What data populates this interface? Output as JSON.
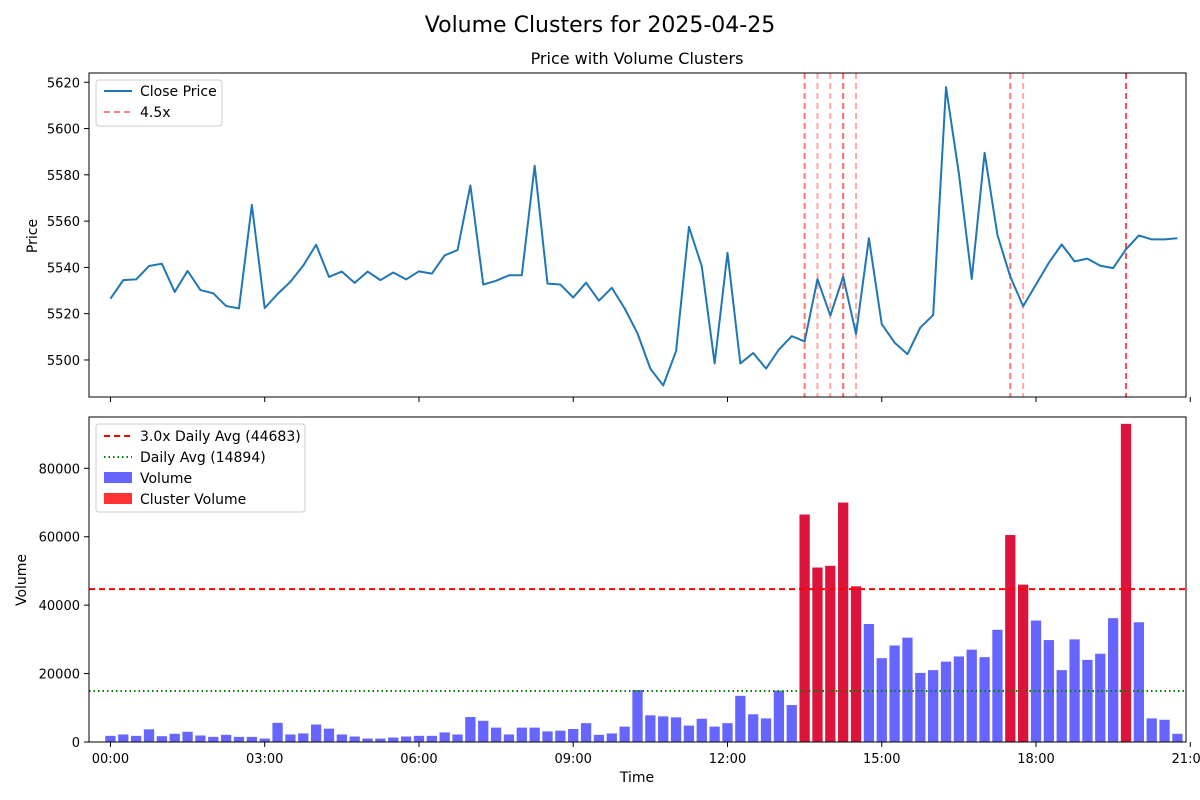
{
  "figure": {
    "suptitle": "Volume Clusters for 2025-04-25"
  },
  "chart_data": [
    {
      "type": "line",
      "title": "Price with Volume Clusters",
      "xlabel": "",
      "ylabel": "Price",
      "xlim": [
        -0.417,
        20.917
      ],
      "ylim": [
        5484,
        5624
      ],
      "yticks": [
        5500,
        5520,
        5540,
        5560,
        5580,
        5600,
        5620
      ],
      "xticks": [
        0,
        3,
        6,
        9,
        12,
        15,
        18,
        21
      ],
      "xticklabels": [
        "00:00",
        "03:00",
        "06:00",
        "09:00",
        "12:00",
        "15:00",
        "18:00",
        "21:00"
      ],
      "grid": false,
      "legend_position": "upper-left",
      "colors": {
        "price": "#1f77b4",
        "cluster_line": "#ff0000"
      },
      "series": [
        {
          "name": "Close Price",
          "x_start_hour": 0,
          "x_step_hours": 0.25,
          "values": [
            5526.5,
            5534.5,
            5534.8,
            5540.6,
            5541.6,
            5529.4,
            5538.5,
            5530.2,
            5528.8,
            5523.3,
            5522.3,
            5567.0,
            5522.4,
            5528.5,
            5533.8,
            5540.8,
            5549.8,
            5535.9,
            5538.2,
            5533.3,
            5538.2,
            5534.5,
            5537.8,
            5534.8,
            5538.3,
            5537.3,
            5545.2,
            5547.5,
            5575.4,
            5532.6,
            5534.2,
            5536.6,
            5536.6,
            5583.9,
            5533.0,
            5532.6,
            5527.0,
            5533.4,
            5525.6,
            5531.2,
            5522.3,
            5511.5,
            5496.2,
            5489.0,
            5503.8,
            5557.5,
            5540.5,
            5498.5,
            5546.3,
            5498.5,
            5503.0,
            5496.3,
            5504.5,
            5510.3,
            5508.0,
            5534.9,
            5519.2,
            5536.0,
            5511.2,
            5552.6,
            5515.5,
            5507.5,
            5502.5,
            5514.0,
            5519.4,
            5617.9,
            5580.5,
            5535.0,
            5589.5,
            5554.0,
            5536.0,
            5523.2,
            5532.6,
            5542.0,
            5549.9,
            5542.6,
            5543.8,
            5540.7,
            5539.7,
            5547.8,
            5553.8,
            5552.1,
            5552.1,
            5552.6
          ]
        }
      ],
      "cluster_lines": [
        {
          "label": "4.5x",
          "x_hour": 13.5,
          "alpha": 0.55
        },
        {
          "x_hour": 13.75,
          "alpha": 0.35
        },
        {
          "x_hour": 14.0,
          "alpha": 0.35
        },
        {
          "x_hour": 14.25,
          "alpha": 0.6
        },
        {
          "x_hour": 14.5,
          "alpha": 0.35
        },
        {
          "x_hour": 17.5,
          "alpha": 0.55
        },
        {
          "x_hour": 17.75,
          "alpha": 0.35
        },
        {
          "x_hour": 19.75,
          "alpha": 0.7
        }
      ]
    },
    {
      "type": "bar",
      "title": "",
      "xlabel": "Time",
      "ylabel": "Volume",
      "xlim": [
        -0.417,
        20.917
      ],
      "ylim": [
        0,
        95000
      ],
      "yticks": [
        0,
        20000,
        40000,
        60000,
        80000
      ],
      "xticks": [
        0,
        3,
        6,
        9,
        12,
        15,
        18,
        21
      ],
      "xticklabels": [
        "00:00",
        "03:00",
        "06:00",
        "09:00",
        "12:00",
        "15:00",
        "18:00",
        "21:00"
      ],
      "grid": false,
      "legend_position": "upper-left",
      "bar_width_hours": 0.2,
      "x_start_hour": 0,
      "x_step_hours": 0.25,
      "values": [
        1800,
        2200,
        1800,
        3700,
        1700,
        2400,
        3000,
        1900,
        1500,
        2100,
        1500,
        1500,
        1000,
        5600,
        2200,
        2500,
        5100,
        3900,
        2200,
        1600,
        1000,
        1000,
        1300,
        1600,
        1800,
        1800,
        2800,
        2200,
        7300,
        6200,
        4200,
        2200,
        4200,
        4200,
        3100,
        3300,
        3800,
        5500,
        2100,
        2500,
        4500,
        15200,
        7800,
        7500,
        7200,
        4800,
        6800,
        4500,
        5500,
        13500,
        8100,
        6900,
        15000,
        10800,
        66500,
        51000,
        51500,
        70000,
        45500,
        34500,
        24500,
        28200,
        30500,
        20200,
        21000,
        23500,
        25000,
        27000,
        24800,
        32800,
        60500,
        46000,
        35500,
        29800,
        21000,
        30000,
        24000,
        25800,
        36200,
        93000,
        35000,
        6900,
        6500,
        2400
      ],
      "cluster_indices": [
        54,
        55,
        56,
        57,
        58,
        70,
        71,
        79
      ],
      "reference_lines": {
        "threshold": {
          "label": "3.0x Daily Avg (44683)",
          "value": 44683,
          "color": "#ff0000"
        },
        "average": {
          "label": "Daily Avg (14894)",
          "value": 14894,
          "color": "#008000"
        }
      },
      "legend": {
        "volume_label": "Volume",
        "cluster_label": "Cluster Volume"
      },
      "colors": {
        "volume": "#6666ff",
        "cluster": "#dc143c"
      }
    }
  ]
}
